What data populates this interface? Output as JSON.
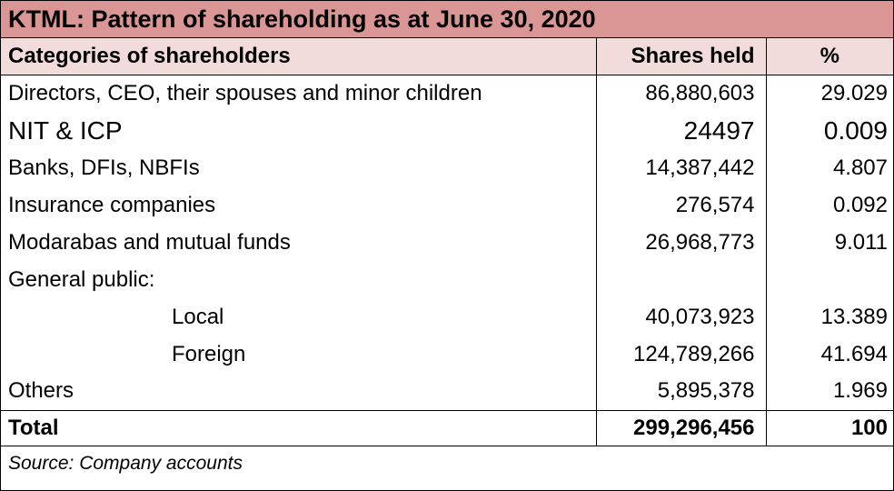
{
  "title": "KTML: Pattern of shareholding as at June 30, 2020",
  "header": {
    "category": "Categories of shareholders",
    "shares": "Shares held",
    "percent": "%"
  },
  "rows": [
    {
      "category": "Directors, CEO, their spouses and minor children",
      "shares": "86,880,603",
      "percent": "29.029"
    },
    {
      "category": "NIT & ICP",
      "shares": "24497",
      "percent": "0.009"
    },
    {
      "category": "Banks, DFIs, NBFIs",
      "shares": "14,387,442",
      "percent": "4.807"
    },
    {
      "category": "Insurance companies",
      "shares": "276,574",
      "percent": "0.092"
    },
    {
      "category": "Modarabas and mutual funds",
      "shares": "26,968,773",
      "percent": "9.011"
    },
    {
      "category": "General public:",
      "shares": "",
      "percent": ""
    },
    {
      "category": "Local",
      "shares": "40,073,923",
      "percent": "13.389"
    },
    {
      "category": "Foreign",
      "shares": "124,789,266",
      "percent": "41.694"
    },
    {
      "category": "Others",
      "shares": "5,895,378",
      "percent": "1.969"
    }
  ],
  "total": {
    "category": "Total",
    "shares": "299,296,456",
    "percent": "100"
  },
  "source": "Source: Company accounts",
  "colors": {
    "title_bg": "#d99694",
    "header_bg": "#f2dcdb"
  }
}
